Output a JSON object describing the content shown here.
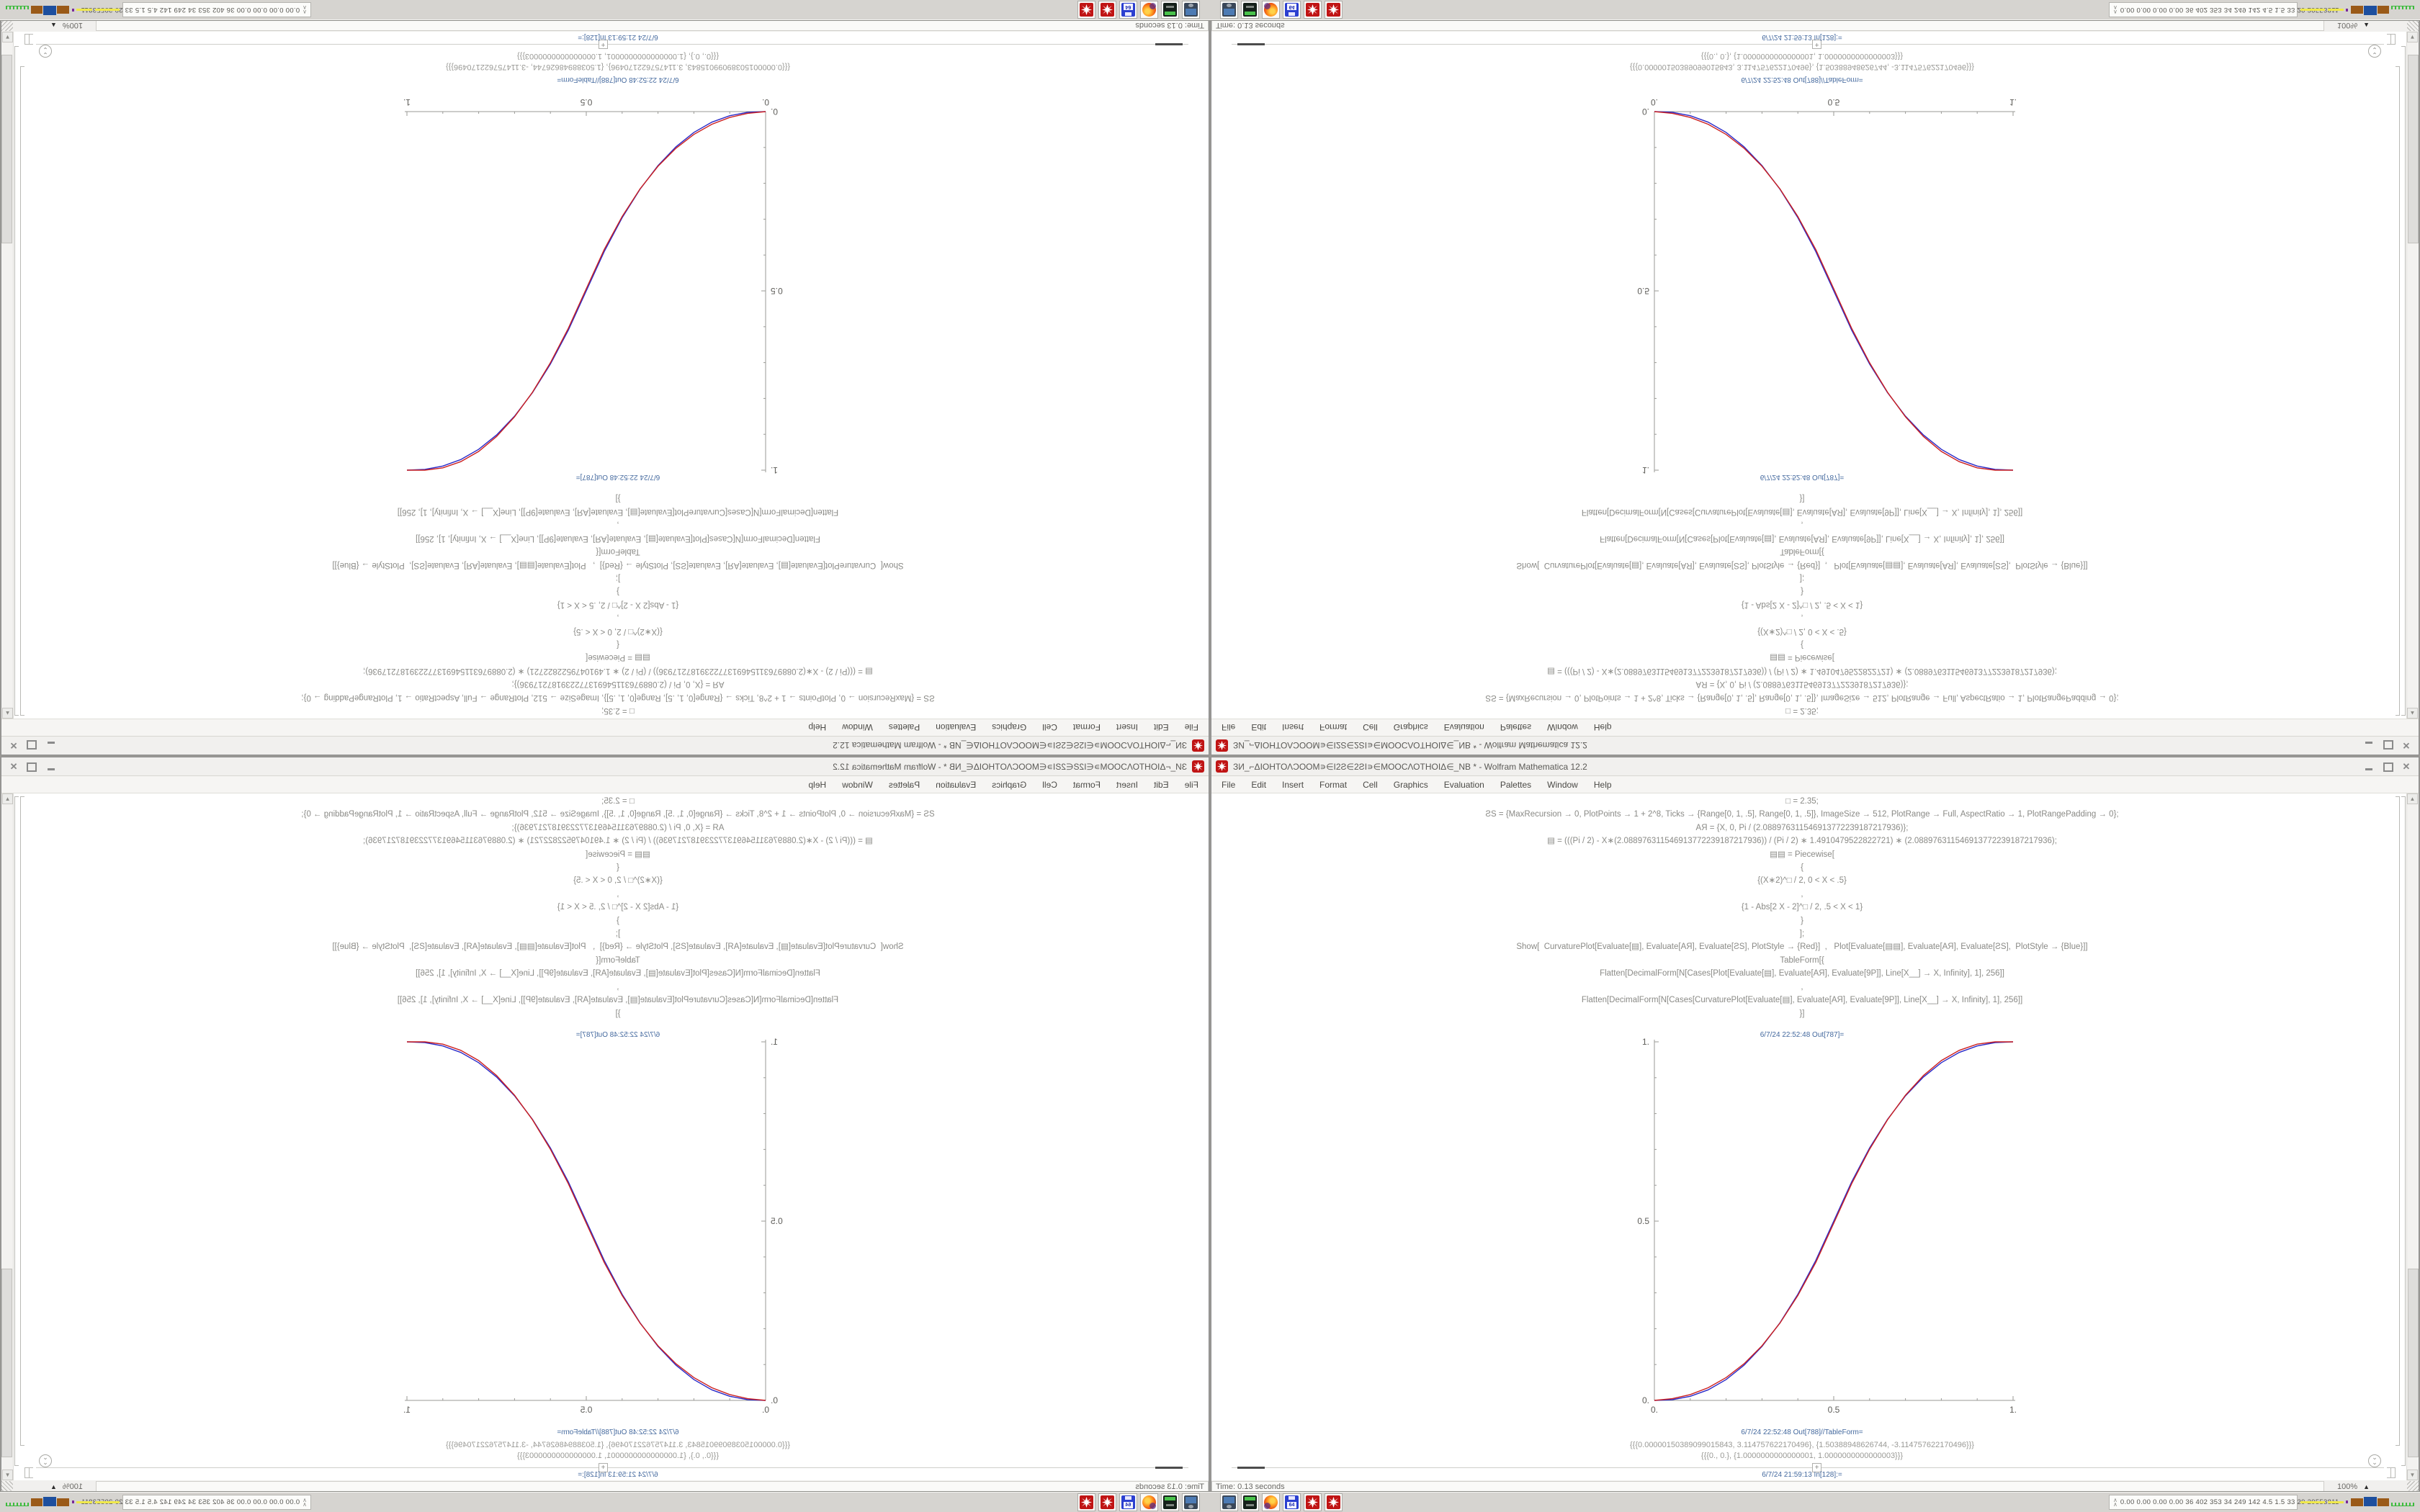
{
  "quadrants": [
    {
      "position": "top-left",
      "orientation": "rotated-180"
    },
    {
      "position": "top-right",
      "orientation": "flipped-vertical"
    },
    {
      "position": "bottom-left",
      "orientation": "mirrored-horizontal"
    },
    {
      "position": "bottom-right",
      "orientation": "normal"
    }
  ],
  "window": {
    "title": "ЗИ_⌐ΔΙΟΗΤΟΛƆΟΟΜ∍∈Ι2Ƨ∈2ƧΙ∍∈ΜΟΟϹΛΟΤΗΟΙΔ∈_NB * - Wolfram Mathematica 12.2",
    "menu": [
      "File",
      "Edit",
      "Insert",
      "Format",
      "Cell",
      "Graphics",
      "Evaluation",
      "Palettes",
      "Window",
      "Help"
    ],
    "status_time": "Time: 0.13 seconds",
    "zoom_level": "100%"
  },
  "icons": {
    "close": "✕",
    "insert_plus": "+",
    "scroll_up": "▲",
    "scroll_down": "▼",
    "zoom_caret": "▲",
    "group_chevron": "»",
    "tray_chevron": "∧∧"
  },
  "notebook": {
    "code_lines": [
      "□ = 2.35;",
      "ƧS = {MaxRecursion → 0, PlotPoints → 1 + 2^8, Ticks → {Range[0, 1, .5], Range[0, 1, .5]}, ImageSize → 512, PlotRange → Full, AspectRatio → 1, PlotRangePadding → 0};",
      "AЯ = {X, 0, Pi / (2.088976311546913772239187217936)};",
      "▤ = (((Pi / 2) - X∗(2.088976311546913772239187217936)) / (Pi / 2) ∗ 1.4910479522822721) ∗ (2.088976311546913772239187217936);",
      "▤▤ = Piecewise[",
      "{",
      "{(X∗2)^□ / 2, 0 < X < .5}",
      ",",
      "{1 - Abs[2 X - 2]^□ / 2, .5 < X < 1}",
      "}",
      "];",
      "Show[  CurvaturePlot[Evaluate[▤], Evaluate[AЯ], Evaluate[ƧS], PlotStyle → {Red}]  ,   Plot[Evaluate[▤▤], Evaluate[AЯ], Evaluate[ƧS],  PlotStyle → {Blue}]]",
      "TableForm[{",
      "Flatten[DecimalForm[N[Cases[Plot[Evaluate[▤], Evaluate[AЯ], Evaluate[9Ρ]], Line[X__] → X, Infinity], 1], 256]]",
      ",",
      "Flatten[DecimalForm[N[Cases[CurvaturePlot[Evaluate[▤], Evaluate[AЯ], Evaluate[9Ρ]], Line[X__] → X, Infinity], 1], 256]]",
      "}]"
    ],
    "out787_label": "6/7/24 22:52:48 Out[787]=",
    "out788_label": "6/7/24 22:52:48 Out[788]//TableForm=",
    "in_label": "6/7/24 21:59:13 In[128]:=",
    "table_row1": "{{{0.00000150389099015843, 3.114757622170496}, {1.50388948626744, -3.114757622170496}}}",
    "table_row2": "{{{0., 0.}, {1.0000000000000001, 1.0000000000000003}}}"
  },
  "taskbar": {
    "launcher_icons": [
      "display-settings",
      "terminal",
      "firefox",
      "floppy-64",
      "mathematica-red-gear",
      "mathematica-red-gear"
    ],
    "tray_text": "0.00 0.00 0.00 0.00   36   402   353   34   249   142   4.5   1.5   33   29   29553811"
  },
  "colors": {
    "series_red": "#cc2020",
    "series_blue": "#2a2ac8",
    "label_blue": "#44699e",
    "code_gray": "#8a8a86",
    "chrome_gray": "#f1f0ee",
    "taskbar_gray": "#d6d4d0"
  },
  "chart_data": {
    "type": "line",
    "title": "",
    "xlabel": "",
    "ylabel": "",
    "xlim": [
      0,
      1
    ],
    "ylim": [
      0,
      1
    ],
    "grid": false,
    "legend_position": "none",
    "axes": "left and bottom only, AspectRatio 1, ImageSize 512",
    "xticks": [
      0,
      0.5,
      1
    ],
    "xtick_labels": [
      "0.",
      "0.5",
      "1."
    ],
    "yticks": [
      0,
      0.5,
      1
    ],
    "ytick_labels": [
      "0.",
      "0.5",
      "1."
    ],
    "minor_tick_step": 0.1,
    "function_definition": "y = (2x)^2.35 / 2 for 0 < x < 0.5 ;  y = 1 - |2x-2|^2.35 / 2 for 0.5 < x < 1",
    "series": [
      {
        "name": "CurvaturePlot[▤] (red)",
        "color": "#cc2020",
        "points": [
          [
            0,
            0
          ],
          [
            0.05,
            0.0048
          ],
          [
            0.1,
            0.0163
          ],
          [
            0.15,
            0.0354
          ],
          [
            0.2,
            0.0637
          ],
          [
            0.25,
            0.1023
          ],
          [
            0.3,
            0.1525
          ],
          [
            0.35,
            0.2154
          ],
          [
            0.4,
            0.2925
          ],
          [
            0.45,
            0.3847
          ],
          [
            0.5,
            0.494
          ],
          [
            0.55,
            0.6043
          ],
          [
            0.6,
            0.7005
          ],
          [
            0.65,
            0.7828
          ],
          [
            0.7,
            0.8513
          ],
          [
            0.75,
            0.9061
          ],
          [
            0.8,
            0.9477
          ],
          [
            0.85,
            0.9764
          ],
          [
            0.9,
            0.9935
          ],
          [
            0.95,
            0.9999
          ],
          [
            1,
            1
          ]
        ]
      },
      {
        "name": "Plot[▤▤ Piecewise] (blue)",
        "color": "#2a2ac8",
        "points": [
          [
            0,
            0
          ],
          [
            0.05,
            0.0021
          ],
          [
            0.1,
            0.0114
          ],
          [
            0.15,
            0.0295
          ],
          [
            0.2,
            0.058
          ],
          [
            0.25,
            0.0981
          ],
          [
            0.3,
            0.1506
          ],
          [
            0.35,
            0.2163
          ],
          [
            0.4,
            0.296
          ],
          [
            0.45,
            0.3903
          ],
          [
            0.5,
            0.5
          ],
          [
            0.55,
            0.6097
          ],
          [
            0.6,
            0.704
          ],
          [
            0.65,
            0.7837
          ],
          [
            0.7,
            0.8494
          ],
          [
            0.75,
            0.9019
          ],
          [
            0.8,
            0.942
          ],
          [
            0.85,
            0.9705
          ],
          [
            0.9,
            0.9886
          ],
          [
            0.95,
            0.9979
          ],
          [
            1,
            1
          ]
        ]
      }
    ]
  }
}
